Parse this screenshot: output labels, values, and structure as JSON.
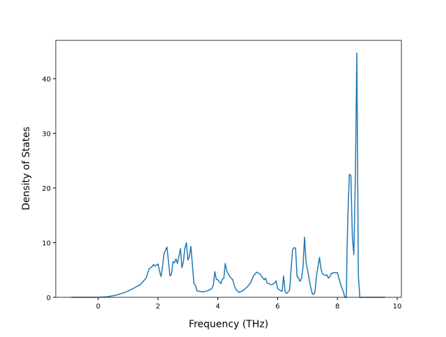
{
  "chart_data": {
    "type": "line",
    "xlabel": "Frequency (THz)",
    "ylabel": "Density of States",
    "x": [
      -0.9,
      -0.5,
      0,
      0.3,
      0.6,
      0.9,
      1.2,
      1.4,
      1.6,
      1.7,
      1.8,
      1.85,
      1.9,
      2.0,
      2.05,
      2.1,
      2.15,
      2.2,
      2.3,
      2.4,
      2.45,
      2.5,
      2.55,
      2.6,
      2.65,
      2.7,
      2.75,
      2.8,
      2.85,
      2.9,
      2.95,
      3.0,
      3.05,
      3.1,
      3.15,
      3.2,
      3.25,
      3.3,
      3.5,
      3.6,
      3.7,
      3.8,
      3.85,
      3.9,
      3.95,
      4.0,
      4.1,
      4.15,
      4.2,
      4.25,
      4.3,
      4.4,
      4.5,
      4.55,
      4.6,
      4.7,
      4.8,
      4.9,
      5.0,
      5.1,
      5.2,
      5.3,
      5.4,
      5.5,
      5.55,
      5.6,
      5.65,
      5.8,
      5.9,
      5.95,
      6.0,
      6.1,
      6.15,
      6.2,
      6.25,
      6.3,
      6.4,
      6.5,
      6.55,
      6.6,
      6.65,
      6.7,
      6.75,
      6.8,
      6.85,
      6.9,
      6.95,
      7.0,
      7.1,
      7.15,
      7.2,
      7.25,
      7.3,
      7.4,
      7.45,
      7.5,
      7.6,
      7.65,
      7.7,
      7.75,
      7.8,
      7.9,
      8.0,
      8.05,
      8.1,
      8.2,
      8.25,
      8.3,
      8.32,
      8.35,
      8.4,
      8.45,
      8.5,
      8.55,
      8.6,
      8.65,
      8.7,
      8.75,
      9.0,
      9.6
    ],
    "series": [
      {
        "color": "#1f77b4",
        "values": [
          0,
          0,
          0,
          0.1,
          0.4,
          0.9,
          1.7,
          2.3,
          3.5,
          5.2,
          5.6,
          6.0,
          5.7,
          6.1,
          4.8,
          3.8,
          5.5,
          8.0,
          9.2,
          3.9,
          4.2,
          6.5,
          6.3,
          7.0,
          6.2,
          7.5,
          8.9,
          5.4,
          6.5,
          9.0,
          10.0,
          6.8,
          7.5,
          9.3,
          6.0,
          2.5,
          2.2,
          1.2,
          1.0,
          1.1,
          1.3,
          1.6,
          2.2,
          4.7,
          3.3,
          3.2,
          2.5,
          3.3,
          3.5,
          6.2,
          4.8,
          3.8,
          3.2,
          2.2,
          1.5,
          0.9,
          1.1,
          1.5,
          2.0,
          2.7,
          4.0,
          4.6,
          4.3,
          3.6,
          3.2,
          3.5,
          2.6,
          2.3,
          2.6,
          3.0,
          1.6,
          1.2,
          1.1,
          3.9,
          1.0,
          0.7,
          1.3,
          8.7,
          9.1,
          9.0,
          3.8,
          3.6,
          2.9,
          3.5,
          5.5,
          11.0,
          6.5,
          5.0,
          2.0,
          0.8,
          0.5,
          1.0,
          3.9,
          7.3,
          5.2,
          4.3,
          4.0,
          4.1,
          3.5,
          3.8,
          4.4,
          4.5,
          4.5,
          3.5,
          2.5,
          1.0,
          0,
          0,
          8.0,
          15,
          22.5,
          22.3,
          11,
          7.8,
          22,
          44.7,
          4.0,
          0,
          0,
          0
        ]
      }
    ],
    "xlim": [
      -1.42,
      10.14
    ],
    "xticks": [
      0,
      2,
      4,
      6,
      8,
      10
    ],
    "ylim": [
      0,
      47
    ],
    "yticks": [
      0,
      10,
      20,
      30,
      40
    ]
  }
}
